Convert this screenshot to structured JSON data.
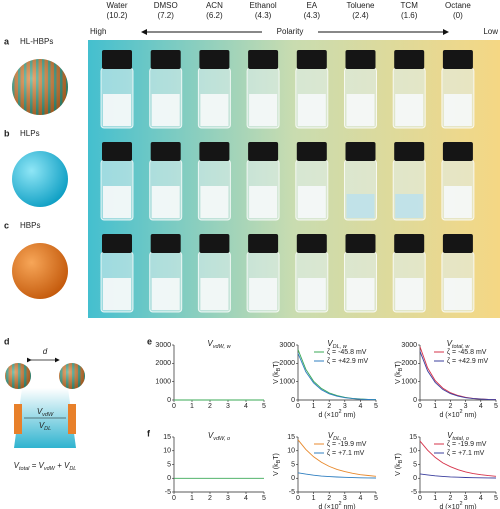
{
  "solvents": [
    {
      "name": "Water",
      "polarity": "(10.2)"
    },
    {
      "name": "DMSO",
      "polarity": "(7.2)"
    },
    {
      "name": "ACN",
      "polarity": "(6.2)"
    },
    {
      "name": "Ethanol",
      "polarity": "(4.3)"
    },
    {
      "name": "EA",
      "polarity": "(4.3)"
    },
    {
      "name": "Toluene",
      "polarity": "(2.4)"
    },
    {
      "name": "TCM",
      "polarity": "(1.6)"
    },
    {
      "name": "Octane",
      "polarity": "(0)"
    }
  ],
  "polarity_axis": {
    "high": "High",
    "label": "Polarity",
    "low": "Low"
  },
  "rows": [
    {
      "letter": "a",
      "label": "HL-HBPs"
    },
    {
      "letter": "b",
      "label": "HLPs"
    },
    {
      "letter": "c",
      "label": "HBPs"
    }
  ],
  "panel_d": {
    "letter": "d",
    "distance": "d",
    "vdw": {
      "t": "V",
      "sub": "vdW"
    },
    "dl": {
      "t": "V",
      "sub": "DL"
    },
    "equation": [
      {
        "t": "V",
        "sub": "total"
      },
      {
        "t": " = V",
        "sub": "vdW"
      },
      {
        "t": " + V",
        "sub": "DL"
      }
    ]
  },
  "panel_letters": [
    "e",
    "f"
  ],
  "chart_data": [
    {
      "type": "line",
      "title": {
        "t": "V",
        "sub": "vdW, w"
      },
      "x": [
        0,
        0.5,
        1,
        1.5,
        2,
        2.5,
        3,
        3.5,
        4,
        4.5,
        5
      ],
      "xlim": [
        0,
        5
      ],
      "ylim": [
        0,
        3000
      ],
      "xticks": [
        0,
        1,
        2,
        3,
        4,
        5
      ],
      "yticks": [
        0,
        1000,
        2000,
        3000
      ],
      "series": [
        {
          "color": "#3aa856",
          "values": [
            0,
            0,
            0,
            0,
            0,
            0,
            0,
            0,
            0,
            0,
            0
          ]
        }
      ]
    },
    {
      "type": "line",
      "title": {
        "t": "V",
        "sub": "DL, w"
      },
      "xlabel": {
        "t": "d (×10",
        "sup": "2",
        "post": " nm)"
      },
      "ylabel": {
        "t": "V (k",
        "sub": "B",
        "post": "T)"
      },
      "x": [
        0,
        0.5,
        1,
        1.5,
        2,
        2.5,
        3,
        3.5,
        4,
        4.5,
        5
      ],
      "xlim": [
        0,
        5
      ],
      "ylim": [
        0,
        3000
      ],
      "xticks": [
        0,
        1,
        2,
        3,
        4,
        5
      ],
      "yticks": [
        0,
        1000,
        2000,
        3000
      ],
      "series": [
        {
          "name": "ζ = -45.8 mV",
          "color": "#3aa856",
          "values": [
            2750,
            1680,
            1020,
            630,
            390,
            240,
            145,
            88,
            53,
            32,
            20
          ]
        },
        {
          "name": "ζ = +42.9 mV",
          "color": "#2f7fc1",
          "values": [
            2550,
            1540,
            930,
            560,
            340,
            205,
            125,
            76,
            46,
            28,
            17
          ]
        }
      ]
    },
    {
      "type": "line",
      "title": {
        "t": "V",
        "sub": "total, w"
      },
      "xlabel": {
        "t": "d (×10",
        "sup": "2",
        "post": " nm)"
      },
      "ylabel": {
        "t": "V (k",
        "sub": "B",
        "post": "T)"
      },
      "x": [
        0,
        0.5,
        1,
        1.5,
        2,
        2.5,
        3,
        3.5,
        4,
        4.5,
        5
      ],
      "xlim": [
        0,
        5
      ],
      "ylim": [
        0,
        3000
      ],
      "xticks": [
        0,
        1,
        2,
        3,
        4,
        5
      ],
      "yticks": [
        0,
        1000,
        2000,
        3000
      ],
      "series": [
        {
          "name": "ζ = -45.8 mV",
          "color": "#d6334a",
          "values": [
            2900,
            1750,
            1060,
            650,
            400,
            245,
            150,
            90,
            55,
            33,
            20
          ]
        },
        {
          "name": "ζ = +42.9 mV",
          "color": "#3b3f9e",
          "values": [
            2650,
            1590,
            960,
            580,
            350,
            210,
            128,
            78,
            47,
            28,
            17
          ]
        }
      ]
    },
    {
      "type": "line",
      "title": {
        "t": "V",
        "sub": "vdW, o"
      },
      "x": [
        0,
        0.5,
        1,
        1.5,
        2,
        2.5,
        3,
        3.5,
        4,
        4.5,
        5
      ],
      "xlim": [
        0,
        5
      ],
      "ylim": [
        -5,
        15
      ],
      "xticks": [
        0,
        1,
        2,
        3,
        4,
        5
      ],
      "yticks": [
        -5,
        0,
        5,
        10,
        15
      ],
      "series": [
        {
          "color": "#3aa856",
          "values": [
            0,
            0,
            0,
            0,
            0,
            0,
            0,
            0,
            0,
            0,
            0
          ]
        }
      ]
    },
    {
      "type": "line",
      "title": {
        "t": "V",
        "sub": "DL, o"
      },
      "xlabel": {
        "t": "d (×10",
        "sup": "2",
        "post": " nm)"
      },
      "ylabel": {
        "t": "V (k",
        "sub": "B",
        "post": "T)"
      },
      "x": [
        0,
        0.5,
        1,
        1.5,
        2,
        2.5,
        3,
        3.5,
        4,
        4.5,
        5
      ],
      "xlim": [
        0,
        5
      ],
      "ylim": [
        -5,
        15
      ],
      "xticks": [
        0,
        1,
        2,
        3,
        4,
        5
      ],
      "yticks": [
        -5,
        0,
        5,
        10,
        15
      ],
      "series": [
        {
          "name": "ζ = -19.9 mV",
          "color": "#e8892c",
          "values": [
            14,
            10.5,
            7.8,
            5.8,
            4.3,
            3.2,
            2.4,
            1.8,
            1.3,
            1,
            0.7
          ]
        },
        {
          "name": "ζ = +7.1 mV",
          "color": "#2f7fc1",
          "values": [
            2,
            1.5,
            1.1,
            0.8,
            0.6,
            0.45,
            0.33,
            0.25,
            0.18,
            0.13,
            0.1
          ]
        }
      ]
    },
    {
      "type": "line",
      "title": {
        "t": "V",
        "sub": "total, o"
      },
      "xlabel": {
        "t": "d (×10",
        "sup": "2",
        "post": " nm)"
      },
      "ylabel": {
        "t": "V (k",
        "sub": "B",
        "post": "T)"
      },
      "x": [
        0,
        0.5,
        1,
        1.5,
        2,
        2.5,
        3,
        3.5,
        4,
        4.5,
        5
      ],
      "xlim": [
        0,
        5
      ],
      "ylim": [
        -5,
        15
      ],
      "xticks": [
        0,
        1,
        2,
        3,
        4,
        5
      ],
      "yticks": [
        -5,
        0,
        5,
        10,
        15
      ],
      "series": [
        {
          "name": "ζ = -19.9 mV",
          "color": "#d6334a",
          "values": [
            13.5,
            10.2,
            7.6,
            5.6,
            4.2,
            3.1,
            2.3,
            1.7,
            1.3,
            0.95,
            0.7
          ]
        },
        {
          "name": "ζ = +7.1 mV",
          "color": "#3b3f9e",
          "values": [
            1.6,
            1.2,
            0.9,
            0.66,
            0.5,
            0.37,
            0.27,
            0.2,
            0.15,
            0.11,
            0.08
          ]
        }
      ]
    }
  ]
}
